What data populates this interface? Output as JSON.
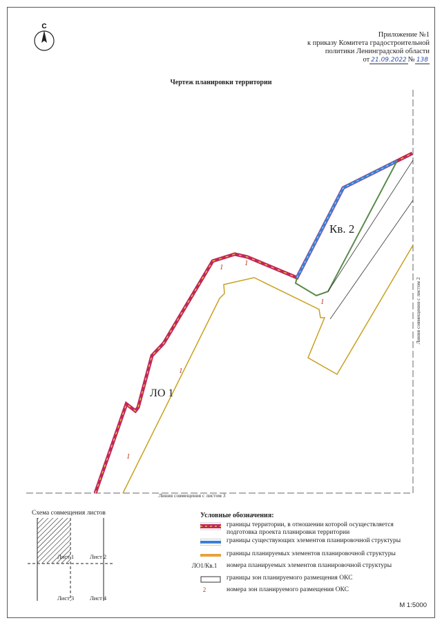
{
  "header": {
    "appendix_line1": "Приложение №1",
    "appendix_line2": "к приказу Комитета градостроительной",
    "appendix_line3": "политики Ленинградской области",
    "appendix_date_prefix": "от",
    "appendix_date": "21.09.2022",
    "appendix_number_prefix": "№",
    "appendix_number": "138",
    "north_letter": "С"
  },
  "map": {
    "title": "Чертеж планировки территории",
    "block_label": "Кв. 2",
    "lo_label": "ЛО 1",
    "zone_labels": [
      "1",
      "1",
      "1",
      "1",
      "1"
    ],
    "match_line_bottom": "Линия совмещения с листом 3",
    "match_line_right": "Линия совмещения с листом 2"
  },
  "scheme": {
    "title": "Схема совмещения листов",
    "sheets": [
      "Лист 1",
      "Лист 2",
      "Лист 3",
      "Лист 4"
    ]
  },
  "legend": {
    "title": "Условные обозначения:",
    "items": [
      {
        "symbol": "territory-boundary",
        "text_line1": "границы территории, в отношении которой осуществляется",
        "text_line2": "подготовка проекта планировки территории"
      },
      {
        "symbol": "existing-elements",
        "text_line1": "границы существующих элементов планировочной структуры"
      },
      {
        "symbol": "planned-elements",
        "text_line1": "границы планируемых элементов планировочной структуры"
      },
      {
        "symbol": "element-numbers",
        "sample": "ЛО1/Кв.1",
        "text_line1": "номера планируемых элементов планировочной структуры"
      },
      {
        "symbol": "oks-zones",
        "text_line1": "границы зон планируемого размещения ОКС"
      },
      {
        "symbol": "oks-zone-numbers",
        "sample": "2",
        "text_line1": "номера зон планируемого размещения ОКС"
      }
    ]
  },
  "scale": "М 1:5000",
  "colors": {
    "territory": "#c0285a",
    "territory_dash": "#e8b84a",
    "existing": "#3a7fd6",
    "planned": "#e6a23a",
    "oks": "#333333",
    "zone_number": "#c0392b",
    "green_boundary": "#5a8a4a"
  }
}
